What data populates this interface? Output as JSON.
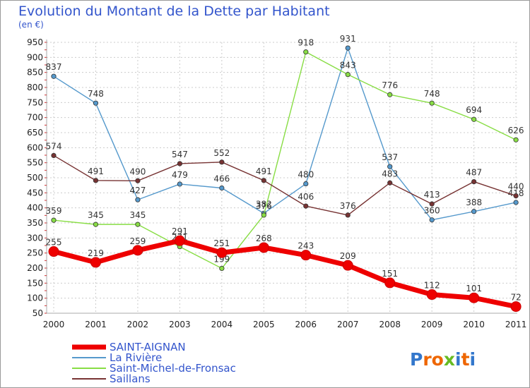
{
  "chart_data": {
    "type": "line",
    "title": "Evolution du Montant de la Dette par Habitant",
    "subtitle": "(en €)",
    "x": [
      "2000",
      "2001",
      "2002",
      "2003",
      "2004",
      "2005",
      "2006",
      "2007",
      "2008",
      "2009",
      "2010",
      "2011"
    ],
    "ylim": [
      50,
      950
    ],
    "yticks": [
      50,
      100,
      150,
      200,
      250,
      300,
      350,
      400,
      450,
      500,
      550,
      600,
      650,
      700,
      750,
      800,
      850,
      900,
      950
    ],
    "grid": true,
    "legend_position": "bottom-left",
    "series": [
      {
        "name": "SAINT-AIGNAN",
        "color": "#ee0000",
        "values": [
          255,
          219,
          259,
          291,
          251,
          268,
          243,
          209,
          151,
          112,
          101,
          72
        ]
      },
      {
        "name": "La Rivière",
        "color": "#5599cc",
        "values": [
          837,
          748,
          427,
          479,
          466,
          382,
          480,
          931,
          537,
          360,
          388,
          418
        ]
      },
      {
        "name": "Saint-Michel-de-Fronsac",
        "color": "#88dd44",
        "values": [
          359,
          345,
          345,
          271,
          199,
          376,
          918,
          843,
          776,
          748,
          694,
          626
        ]
      },
      {
        "name": "Saillans",
        "color": "#773333",
        "values": [
          574,
          491,
          490,
          547,
          552,
          491,
          406,
          376,
          483,
          413,
          487,
          440
        ]
      }
    ]
  },
  "logo": {
    "text": "Proxiti"
  }
}
